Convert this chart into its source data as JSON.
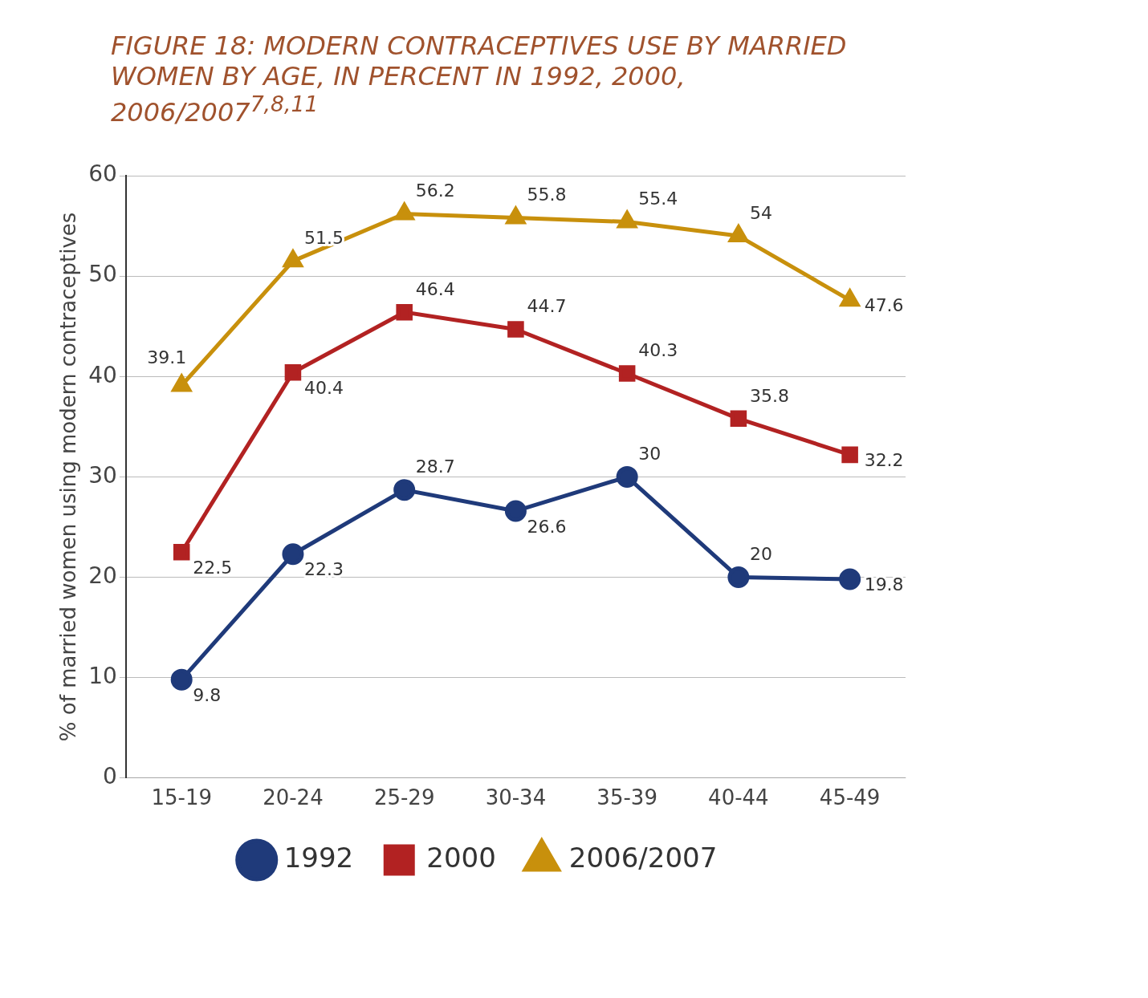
{
  "chart_data": {
    "type": "line",
    "title": "FIGURE 18: MODERN CONTRACEPTIVES USE BY MARRIED WOMEN BY AGE, IN PERCENT IN 1992, 2000, 2006/2007$^{7,8,11}$",
    "ylabel": "% of married women using modern contraceptives",
    "categories": [
      "15-19",
      "20-24",
      "25-29",
      "30-34",
      "35-39",
      "40-44",
      "45-49"
    ],
    "series": [
      {
        "name": "1992",
        "color": "#1f3a7a",
        "marker": "circle",
        "values": [
          9.8,
          22.3,
          28.7,
          26.6,
          30,
          20,
          19.8
        ]
      },
      {
        "name": "2000",
        "color": "#b22222",
        "marker": "square",
        "values": [
          22.5,
          40.4,
          46.4,
          44.7,
          40.3,
          35.8,
          32.2
        ]
      },
      {
        "name": "2006/2007",
        "color": "#c8900c",
        "marker": "triangle",
        "values": [
          39.1,
          51.5,
          56.2,
          55.8,
          55.4,
          54,
          47.6
        ]
      }
    ],
    "ylim": [
      0,
      60
    ],
    "yticks": [
      0,
      10,
      20,
      30,
      40,
      50,
      60
    ],
    "grid": "y",
    "legend": "bottom",
    "data_labels": true,
    "line_style": "solid"
  }
}
